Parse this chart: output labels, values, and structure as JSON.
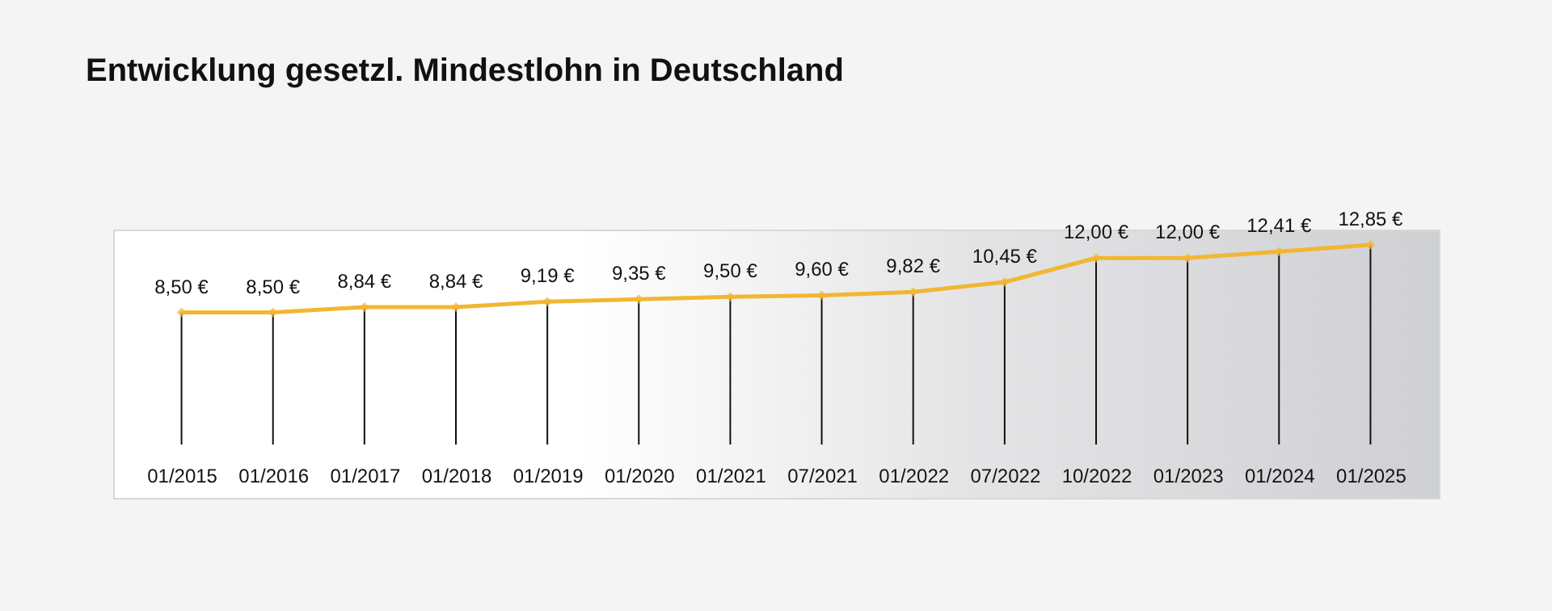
{
  "chart_data": {
    "type": "line",
    "title": "Entwicklung gesetzl. Mindestlohn in Deutschland",
    "categories": [
      "01/2015",
      "01/2016",
      "01/2017",
      "01/2018",
      "01/2019",
      "01/2020",
      "01/2021",
      "07/2021",
      "01/2022",
      "07/2022",
      "10/2022",
      "01/2023",
      "01/2024",
      "01/2025"
    ],
    "series": [
      {
        "color": "#f2b632",
        "values": [
          8.5,
          8.5,
          8.84,
          8.84,
          9.19,
          9.35,
          9.5,
          9.6,
          9.82,
          10.45,
          12.0,
          12.0,
          12.41,
          12.85
        ],
        "value_labels": [
          "8,50 €",
          "8,50 €",
          "8,84 €",
          "8,84 €",
          "9,19 €",
          "9,35 €",
          "9,50 €",
          "9,60 €",
          "9,82 €",
          "10,45 €",
          "12,00 €",
          "12,00 €",
          "12,41 €",
          "12,85 €"
        ]
      }
    ],
    "marker": "diamond",
    "grid": "x"
  }
}
